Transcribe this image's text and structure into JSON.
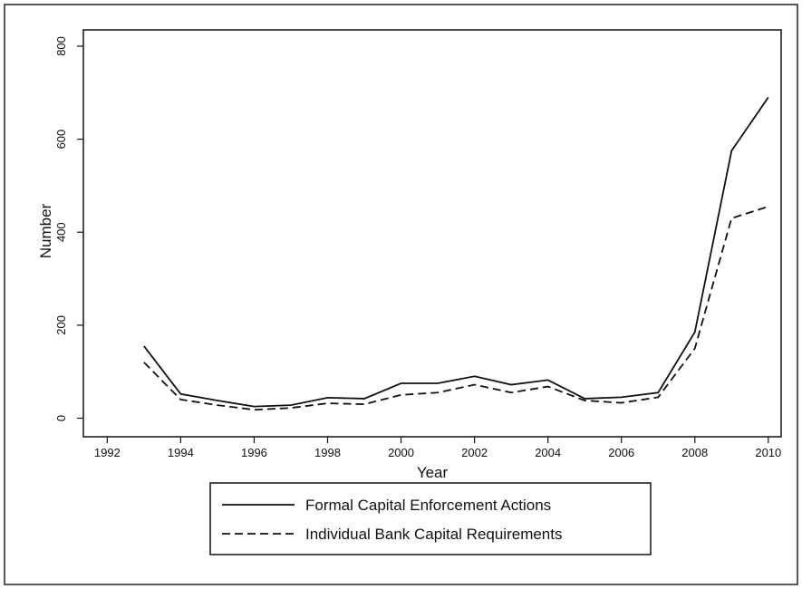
{
  "chart_data": {
    "type": "line",
    "x_label": "Year",
    "y_label": "Number",
    "x": [
      1993,
      1994,
      1995,
      1996,
      1997,
      1998,
      1999,
      2000,
      2001,
      2002,
      2003,
      2004,
      2005,
      2006,
      2007,
      2008,
      2009,
      2010
    ],
    "series": [
      {
        "name": "Formal Capital Enforcement Actions",
        "color": "#111111",
        "line_style": "solid",
        "values": [
          155,
          52,
          38,
          25,
          28,
          44,
          42,
          75,
          75,
          90,
          72,
          82,
          42,
          45,
          55,
          185,
          575,
          690
        ]
      },
      {
        "name": "Individual Bank Capital Requirements",
        "color": "#111111",
        "line_style": "dashed",
        "values": [
          120,
          40,
          28,
          18,
          22,
          32,
          30,
          50,
          55,
          72,
          55,
          68,
          38,
          33,
          45,
          150,
          430,
          455
        ]
      }
    ],
    "xlim": [
      1991.35,
      2010.35
    ],
    "xticks": [
      1992,
      1994,
      1996,
      1998,
      2000,
      2002,
      2004,
      2006,
      2008,
      2010
    ],
    "ylim": [
      -40,
      835
    ],
    "yticks": [
      0,
      200,
      400,
      600,
      800
    ],
    "grid": false
  }
}
